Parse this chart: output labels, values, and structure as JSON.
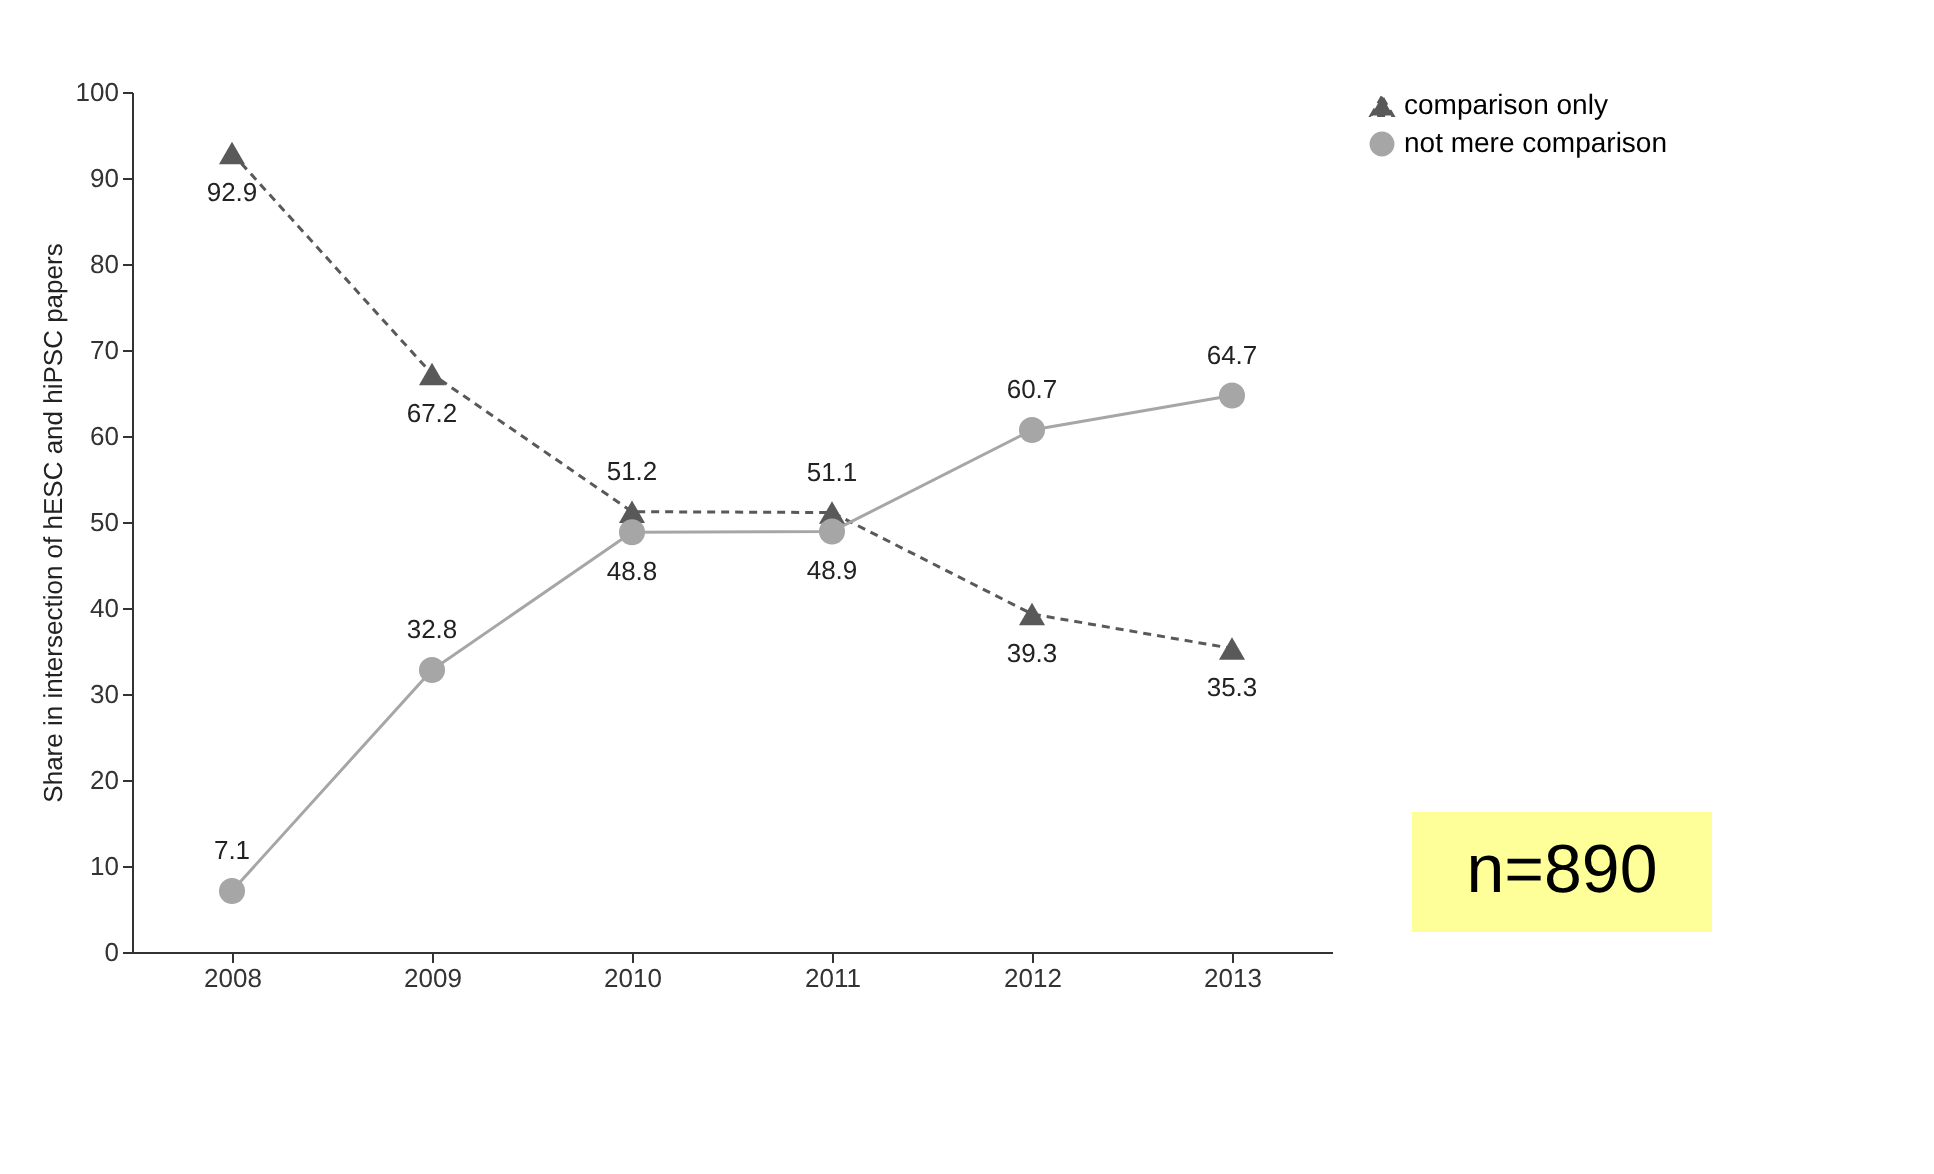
{
  "chart_data": {
    "type": "line",
    "ylabel": "Share in intersection of hESC and hiPSC papers",
    "categories": [
      "2008",
      "2009",
      "2010",
      "2011",
      "2012",
      "2013"
    ],
    "series": [
      {
        "name": "comparison only",
        "color": "#595959",
        "marker": "triangle",
        "line_style": "dashed",
        "values": [
          92.9,
          67.2,
          51.2,
          51.1,
          39.3,
          35.3
        ]
      },
      {
        "name": "not mere comparison",
        "color": "#a6a6a6",
        "marker": "circle",
        "line_style": "solid",
        "values": [
          7.1,
          32.8,
          48.8,
          48.9,
          60.7,
          64.7
        ]
      }
    ],
    "ylim": [
      0,
      100
    ],
    "yticks": [
      0,
      10,
      20,
      30,
      40,
      50,
      60,
      70,
      80,
      90,
      100
    ],
    "grid": false,
    "legend": "right",
    "data_labels": true,
    "annotations": [
      "n=890"
    ]
  }
}
